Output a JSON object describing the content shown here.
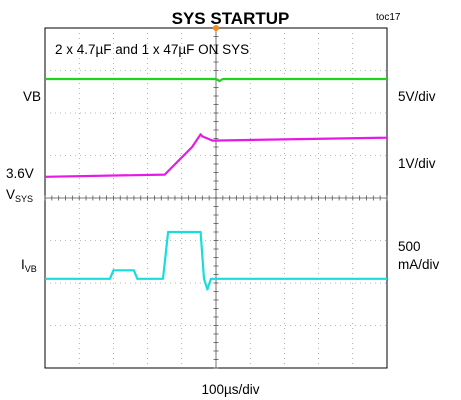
{
  "header": {
    "title": "SYS STARTUP",
    "tag": "toc17"
  },
  "chart_data": {
    "type": "line",
    "title": "SYS STARTUP",
    "annotation": "2 x 4.7µF and 1 x 47µF ON SYS",
    "time_scale": "100µs/div",
    "grid": true,
    "grid_divisions": {
      "x": 10,
      "y": 8
    },
    "trigger_marker_color": "#f08c1e",
    "x_range_us": [
      0,
      1000
    ],
    "series": [
      {
        "name_parts": [
          "VB",
          ""
        ],
        "scale": "5V/div",
        "color": "#1ed21e",
        "offset_div": 1.2,
        "x_us": [
          0,
          500,
          510,
          520,
          1000
        ],
        "y_div": [
          0,
          0,
          -0.05,
          0,
          0
        ]
      },
      {
        "name_parts": [
          "V",
          "SYS"
        ],
        "level_label": "3.6V",
        "scale": "1V/div",
        "color": "#e619e6",
        "offset_div": 3.5,
        "x_us": [
          0,
          350,
          430,
          455,
          460,
          490,
          1000
        ],
        "y_div": [
          0,
          0.05,
          0.7,
          1.0,
          0.95,
          0.85,
          0.92
        ]
      },
      {
        "name_parts": [
          "I",
          "VB"
        ],
        "scale_parts": [
          "500",
          "mA/div"
        ],
        "color": "#19dcdc",
        "offset_div": 5.9,
        "x_us": [
          0,
          190,
          200,
          260,
          270,
          345,
          360,
          455,
          465,
          475,
          485,
          1000
        ],
        "y_div": [
          0,
          0,
          0.2,
          0.2,
          0,
          0,
          1.1,
          1.1,
          0,
          -0.25,
          0,
          0
        ]
      }
    ]
  }
}
